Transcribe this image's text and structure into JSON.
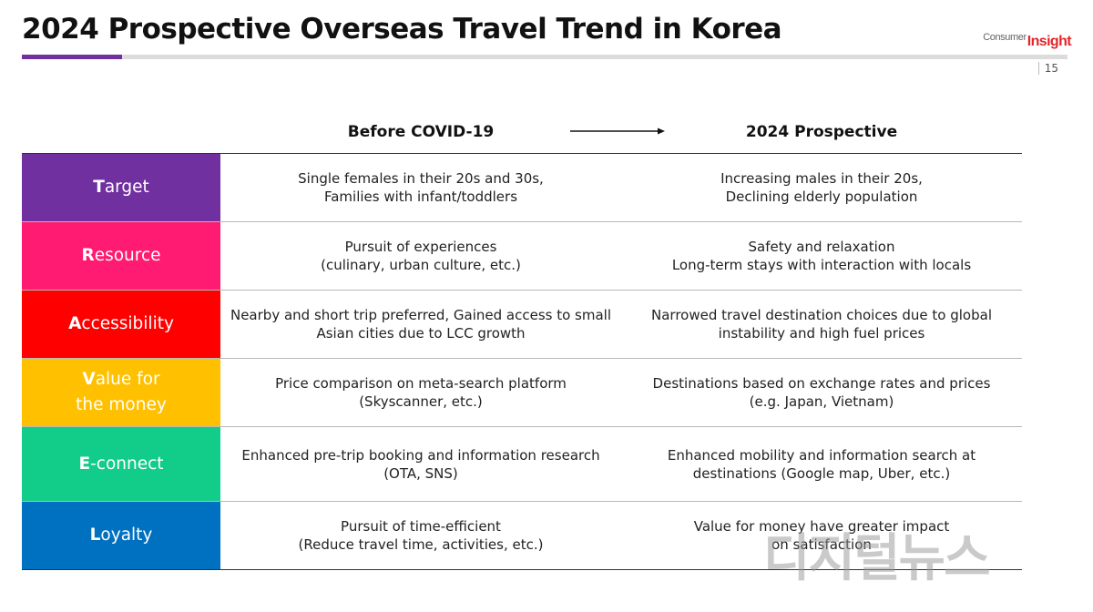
{
  "header": {
    "title": "2024 Prospective Overseas Travel Trend in Korea",
    "logo_part1": "Consumer",
    "logo_part2": "Insight",
    "page_number": "15",
    "accent_color": "#7030a0"
  },
  "columns": {
    "before": "Before COVID-19",
    "after": "2024 Prospective"
  },
  "rows": [
    {
      "label_initial": "T",
      "label_rest": "arget",
      "label_line2": "",
      "color": "#7030a0",
      "before": [
        "Single females in their 20s and 30s,",
        "Families with infant/toddlers"
      ],
      "after": [
        "Increasing males in their 20s,",
        "Declining elderly population"
      ]
    },
    {
      "label_initial": "R",
      "label_rest": "esource",
      "label_line2": "",
      "color": "#ff1a72",
      "before": [
        "Pursuit of experiences",
        "(culinary, urban culture, etc.)"
      ],
      "after": [
        "Safety and relaxation",
        "Long-term stays with interaction with locals"
      ]
    },
    {
      "label_initial": "A",
      "label_rest": "ccessibility",
      "label_line2": "",
      "color": "#ff0000",
      "before": [
        "Nearby and short trip preferred, Gained access to small",
        "Asian cities due to LCC growth"
      ],
      "after": [
        "Narrowed travel destination choices due to global",
        "instability and high fuel prices"
      ]
    },
    {
      "label_initial": "V",
      "label_rest": "alue for",
      "label_line2": "the money",
      "color": "#ffc000",
      "before": [
        "Price comparison on meta-search platform",
        "(Skyscanner, etc.)"
      ],
      "after": [
        "Destinations based on exchange rates and prices",
        "(e.g. Japan, Vietnam)"
      ]
    },
    {
      "label_initial": "E",
      "label_rest": "-connect",
      "label_line2": "",
      "color": "#12cc8a",
      "before": [
        "Enhanced pre-trip booking and information research",
        "(OTA, SNS)"
      ],
      "after": [
        "Enhanced mobility and information search at",
        "destinations (Google map, Uber, etc.)"
      ]
    },
    {
      "label_initial": "L",
      "label_rest": "oyalty",
      "label_line2": "",
      "color": "#0070c0",
      "before": [
        "Pursuit of time-efficient",
        "(Reduce travel time, activities, etc.)"
      ],
      "after": [
        "Value for money have greater impact",
        "on satisfaction"
      ]
    }
  ],
  "watermark": "디지털뉴스"
}
